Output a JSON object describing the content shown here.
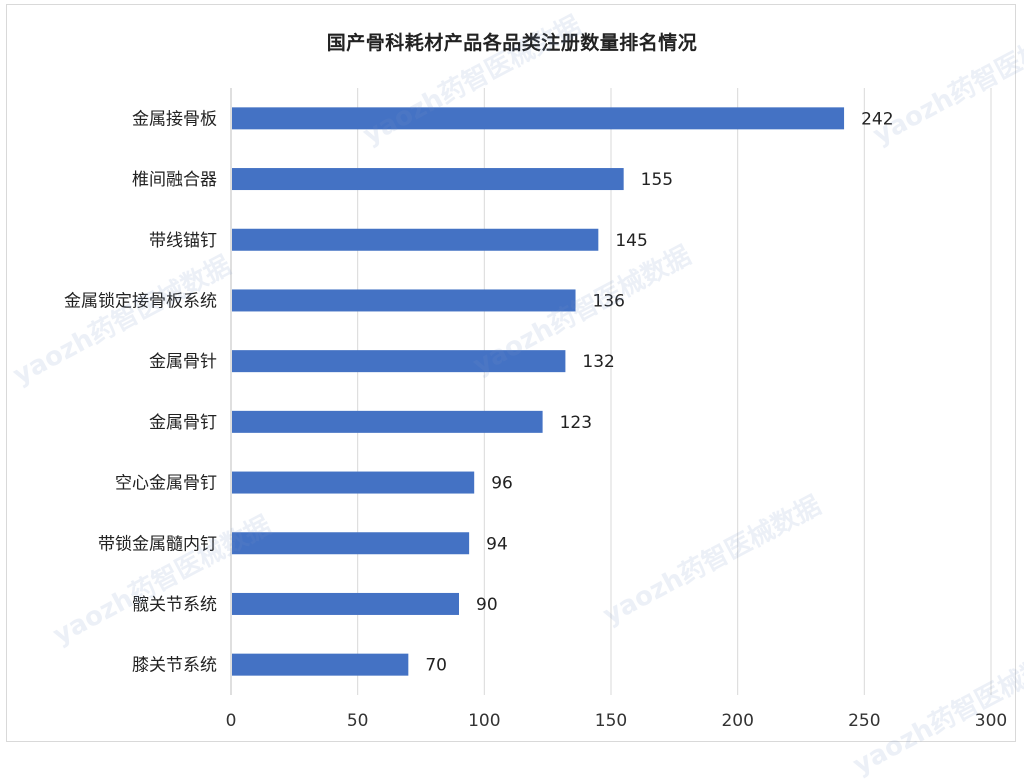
{
  "chart_data": {
    "type": "bar",
    "orientation": "horizontal",
    "title": "国产骨科耗材产品各品类注册数量排名情况",
    "categories": [
      "金属接骨板",
      "椎间融合器",
      "带线锚钉",
      "金属锁定接骨板系统",
      "金属骨针",
      "金属骨钉",
      "空心金属骨钉",
      "带锁金属髓内钉",
      "髋关节系统",
      "膝关节系统"
    ],
    "values": [
      242,
      155,
      145,
      136,
      132,
      123,
      96,
      94,
      90,
      70
    ],
    "xlim": [
      0,
      300
    ],
    "x_ticks": [
      "0",
      "50",
      "100",
      "150",
      "200",
      "250",
      "300"
    ],
    "grid": "vertical",
    "legend": "none",
    "bar_color": "#4472C4"
  },
  "watermark": {
    "text": "yaozh药智医械数据"
  }
}
